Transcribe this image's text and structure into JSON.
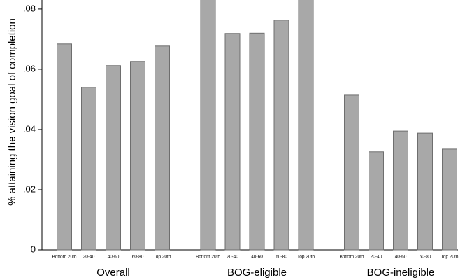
{
  "chart_data": {
    "type": "bar",
    "y_label": "% attaining the vision goal of completion",
    "categories": [
      "Bottom 20th",
      "20-40",
      "40-60",
      "60-80",
      "Top 20th"
    ],
    "groups": [
      {
        "name": "Overall",
        "values": [
          0.0684,
          0.054,
          0.0612,
          0.0626,
          0.0677
        ]
      },
      {
        "name": "BOG-eligible",
        "values": [
          0.086,
          0.0719,
          0.072,
          0.0763,
          0.086
        ]
      },
      {
        "name": "BOG-ineligible",
        "values": [
          0.0514,
          0.0326,
          0.0395,
          0.0388,
          0.0335
        ]
      }
    ],
    "color": "#a8a8a8",
    "ylim": [
      0,
      0.083
    ],
    "yticks": [
      0,
      {
        "value": 0.02,
        "label": ".02"
      },
      {
        "value": 0.04,
        "label": ".04"
      },
      {
        "value": 0.06,
        "label": ".06"
      },
      {
        "value": 0.08,
        "label": ".08"
      }
    ]
  }
}
